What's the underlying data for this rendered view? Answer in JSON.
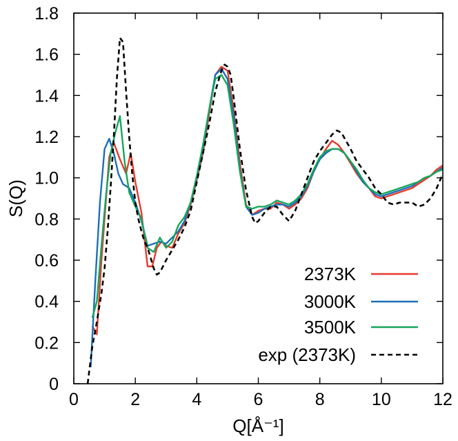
{
  "chart_data": {
    "type": "line",
    "title": "",
    "xlabel": "Q[Å⁻¹]",
    "ylabel": "S(Q)",
    "xlim": [
      0,
      12
    ],
    "ylim": [
      0,
      1.8
    ],
    "xticks": [
      0,
      2,
      4,
      6,
      8,
      10,
      12
    ],
    "yticks": [
      0,
      0.2,
      0.4,
      0.6,
      0.8,
      1.0,
      1.2,
      1.4,
      1.6,
      1.8
    ],
    "ytick_labels": [
      "0",
      "0.2",
      "0.4",
      "0.6",
      "0.8",
      "1.0",
      "1.2",
      "1.4",
      "1.6",
      "1.8"
    ],
    "grid": false,
    "legend_position": "bottom-right",
    "series": [
      {
        "name": "2373K",
        "color": "#e8392b",
        "dash": "solid",
        "x": [
          0.6,
          0.75,
          0.9,
          1.05,
          1.15,
          1.3,
          1.5,
          1.7,
          1.85,
          2.0,
          2.2,
          2.4,
          2.55,
          2.7,
          2.85,
          3.0,
          3.2,
          3.4,
          3.6,
          3.8,
          4.0,
          4.2,
          4.4,
          4.6,
          4.8,
          5.0,
          5.2,
          5.4,
          5.6,
          5.8,
          6.0,
          6.2,
          6.4,
          6.6,
          6.8,
          7.0,
          7.2,
          7.4,
          7.6,
          7.8,
          8.0,
          8.2,
          8.4,
          8.6,
          8.8,
          9.0,
          9.2,
          9.4,
          9.6,
          9.8,
          10.0,
          10.2,
          10.4,
          10.6,
          10.8,
          11.0,
          11.2,
          11.4,
          11.6,
          11.8,
          12.0
        ],
        "values": [
          0.28,
          0.24,
          0.6,
          0.9,
          1.1,
          1.17,
          1.09,
          1.02,
          1.12,
          0.98,
          0.83,
          0.57,
          0.57,
          0.66,
          0.69,
          0.67,
          0.66,
          0.73,
          0.78,
          0.87,
          0.99,
          1.12,
          1.31,
          1.5,
          1.54,
          1.52,
          1.33,
          1.07,
          0.87,
          0.82,
          0.84,
          0.85,
          0.85,
          0.88,
          0.87,
          0.85,
          0.87,
          0.9,
          0.95,
          1.03,
          1.09,
          1.14,
          1.18,
          1.16,
          1.12,
          1.07,
          1.02,
          0.98,
          0.95,
          0.91,
          0.9,
          0.91,
          0.92,
          0.93,
          0.94,
          0.95,
          0.97,
          0.99,
          1.01,
          1.04,
          1.06
        ]
      },
      {
        "name": "3000K",
        "color": "#1a6fb5",
        "dash": "solid",
        "x": [
          0.55,
          0.7,
          0.85,
          1.0,
          1.15,
          1.3,
          1.45,
          1.6,
          1.8,
          2.0,
          2.2,
          2.4,
          2.6,
          2.8,
          3.0,
          3.2,
          3.4,
          3.6,
          3.8,
          4.0,
          4.2,
          4.4,
          4.6,
          4.8,
          5.0,
          5.2,
          5.4,
          5.6,
          5.8,
          6.0,
          6.2,
          6.4,
          6.6,
          6.8,
          7.0,
          7.2,
          7.4,
          7.6,
          7.8,
          8.0,
          8.2,
          8.4,
          8.6,
          8.8,
          9.0,
          9.2,
          9.4,
          9.6,
          9.8,
          10.0,
          10.2,
          10.4,
          10.6,
          10.8,
          11.0,
          11.2,
          11.4,
          11.6,
          11.8,
          12.0
        ],
        "values": [
          0.08,
          0.5,
          0.88,
          1.14,
          1.19,
          1.12,
          1.02,
          0.97,
          0.95,
          0.88,
          0.79,
          0.67,
          0.68,
          0.69,
          0.68,
          0.71,
          0.74,
          0.79,
          0.88,
          1.0,
          1.14,
          1.33,
          1.5,
          1.53,
          1.48,
          1.3,
          1.04,
          0.86,
          0.82,
          0.83,
          0.85,
          0.86,
          0.87,
          0.87,
          0.86,
          0.88,
          0.91,
          0.96,
          1.03,
          1.09,
          1.12,
          1.14,
          1.14,
          1.12,
          1.08,
          1.03,
          0.98,
          0.95,
          0.92,
          0.91,
          0.92,
          0.93,
          0.94,
          0.95,
          0.96,
          0.98,
          1.0,
          1.01,
          1.03,
          1.05
        ]
      },
      {
        "name": "3500K",
        "color": "#17a55c",
        "dash": "solid",
        "x": [
          0.6,
          0.75,
          0.9,
          1.05,
          1.2,
          1.35,
          1.5,
          1.65,
          1.8,
          2.0,
          2.2,
          2.4,
          2.6,
          2.8,
          3.0,
          3.2,
          3.4,
          3.6,
          3.8,
          4.0,
          4.2,
          4.4,
          4.6,
          4.8,
          5.0,
          5.2,
          5.4,
          5.6,
          5.8,
          6.0,
          6.2,
          6.4,
          6.6,
          6.8,
          7.0,
          7.2,
          7.4,
          7.6,
          7.8,
          8.0,
          8.2,
          8.4,
          8.6,
          8.8,
          9.0,
          9.2,
          9.4,
          9.6,
          9.8,
          10.0,
          10.2,
          10.4,
          10.6,
          10.8,
          11.0,
          11.2,
          11.4,
          11.6,
          11.8,
          12.0
        ],
        "values": [
          0.32,
          0.4,
          0.67,
          0.92,
          1.12,
          1.22,
          1.3,
          1.08,
          0.93,
          0.86,
          0.8,
          0.66,
          0.64,
          0.71,
          0.66,
          0.69,
          0.77,
          0.81,
          0.88,
          1.01,
          1.16,
          1.33,
          1.48,
          1.5,
          1.45,
          1.26,
          1.03,
          0.86,
          0.85,
          0.86,
          0.86,
          0.87,
          0.89,
          0.88,
          0.87,
          0.89,
          0.92,
          0.97,
          1.04,
          1.1,
          1.13,
          1.14,
          1.14,
          1.12,
          1.08,
          1.04,
          0.99,
          0.95,
          0.93,
          0.92,
          0.93,
          0.94,
          0.95,
          0.96,
          0.97,
          0.98,
          1.0,
          1.01,
          1.03,
          1.04
        ]
      },
      {
        "name": "exp (2373K)",
        "color": "#000000",
        "dash": "dashed",
        "x": [
          0.45,
          0.6,
          0.75,
          0.9,
          1.0,
          1.1,
          1.2,
          1.3,
          1.4,
          1.5,
          1.6,
          1.7,
          1.8,
          1.9,
          2.0,
          2.1,
          2.2,
          2.3,
          2.4,
          2.5,
          2.6,
          2.7,
          2.8,
          3.0,
          3.2,
          3.4,
          3.6,
          3.8,
          4.0,
          4.2,
          4.4,
          4.6,
          4.8,
          4.9,
          5.0,
          5.1,
          5.2,
          5.4,
          5.6,
          5.8,
          5.9,
          6.0,
          6.2,
          6.4,
          6.6,
          6.8,
          7.0,
          7.2,
          7.4,
          7.6,
          7.8,
          8.0,
          8.2,
          8.4,
          8.55,
          8.7,
          8.85,
          9.0,
          9.2,
          9.4,
          9.6,
          9.8,
          10.0,
          10.2,
          10.4,
          10.6,
          10.8,
          11.0,
          11.2,
          11.4,
          11.6,
          11.8,
          12.0
        ],
        "values": [
          0.0,
          0.18,
          0.3,
          0.44,
          0.56,
          0.74,
          0.96,
          1.2,
          1.48,
          1.68,
          1.66,
          1.42,
          1.2,
          1.02,
          0.88,
          0.8,
          0.74,
          0.69,
          0.66,
          0.61,
          0.56,
          0.53,
          0.54,
          0.6,
          0.65,
          0.7,
          0.76,
          0.84,
          0.98,
          1.12,
          1.26,
          1.42,
          1.52,
          1.55,
          1.54,
          1.5,
          1.39,
          1.14,
          0.94,
          0.81,
          0.78,
          0.79,
          0.83,
          0.86,
          0.86,
          0.82,
          0.79,
          0.84,
          0.92,
          1.0,
          1.08,
          1.13,
          1.17,
          1.21,
          1.23,
          1.22,
          1.18,
          1.14,
          1.08,
          1.04,
          1.0,
          0.95,
          0.92,
          0.88,
          0.87,
          0.88,
          0.88,
          0.88,
          0.86,
          0.87,
          0.9,
          0.95,
          1.02
        ]
      }
    ]
  }
}
